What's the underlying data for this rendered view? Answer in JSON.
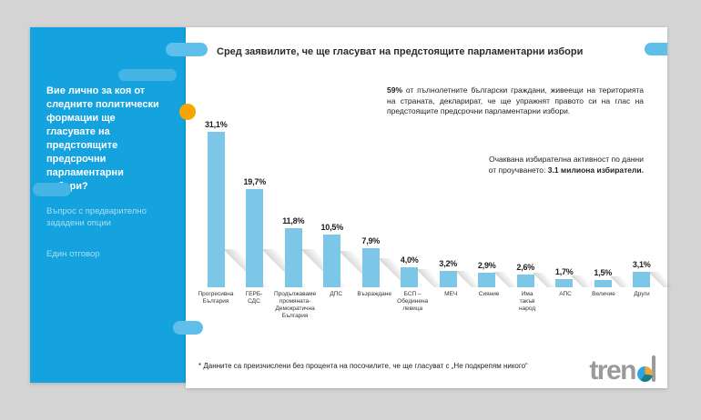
{
  "sidebar": {
    "question": "Вие лично за коя от следните политически формации ще гласувате на предстоящите предсрочни парламентарни избори?",
    "note1": "Въпрос с предварително зададени опции",
    "note2": "Един отговор"
  },
  "header": {
    "title": "Сред заявилите, че ще гласуват на предстоящите парламентарни избори"
  },
  "info": {
    "stat_bold": "59%",
    "stat_rest": " от пълнолетните български граждани, живеещи на територията на страната, декларират, че ще упражнят правото си на глас на предстоящите предсрочни парламентарни избори.",
    "turnout_plain": "Очаквана избирателна активност по данни от проучването: ",
    "turnout_bold": "3.1 милиона избиратели."
  },
  "chart_data": {
    "type": "bar",
    "title": "Сред заявилите, че ще гласуват на предстоящите парламентарни избори",
    "categories": [
      "Прогресивна България",
      "ГЕРБ-СДС",
      "Продължаваме промяната-Демократична България",
      "ДПС",
      "Възраждане",
      "БСП – Обединена левица",
      "МЕЧ",
      "Сияние",
      "Има такъв народ",
      "АПС",
      "Величие",
      "Други"
    ],
    "categories_display": [
      "Прогресивна\nБългария",
      "ГЕРБ-\nСДС",
      "Продължаваме\nпромяната-\nДемократична\nБългария",
      "ДПС",
      "Възраждане",
      "БСП –\nОбединена\nлевица",
      "МЕЧ",
      "Сияние",
      "Има\nтакъв\nнарод",
      "АПС",
      "Величие",
      "Други"
    ],
    "values": [
      31.1,
      19.7,
      11.8,
      10.5,
      7.9,
      4.0,
      3.2,
      2.9,
      2.6,
      1.7,
      1.5,
      3.1
    ],
    "value_labels": [
      "31,1%",
      "19,7%",
      "11,8%",
      "10,5%",
      "7,9%",
      "4,0%",
      "3,2%",
      "2,9%",
      "2,6%",
      "1,7%",
      "1,5%",
      "3,1%"
    ],
    "xlabel": "",
    "ylabel": "",
    "ylim": [
      0,
      33
    ],
    "grid": false,
    "legend": false,
    "bar_color": "#7cc7e8"
  },
  "footnote": "* Данните са преизчислени без процента на посочилите, че ще гласуват с „Не подкрепям никого“",
  "logo": {
    "text_prefix": "tren",
    "text_full": "trend"
  },
  "colors": {
    "background": "#d4d4d4",
    "sidebar": "#14a3de",
    "bar": "#7cc7e8",
    "accent_dot": "#f7a600",
    "pill_light": "#5ec0ea",
    "title_text": "#2b2b2b",
    "sidebar_note_text": "#a9def5",
    "logo_gray": "#9a9a9a"
  }
}
